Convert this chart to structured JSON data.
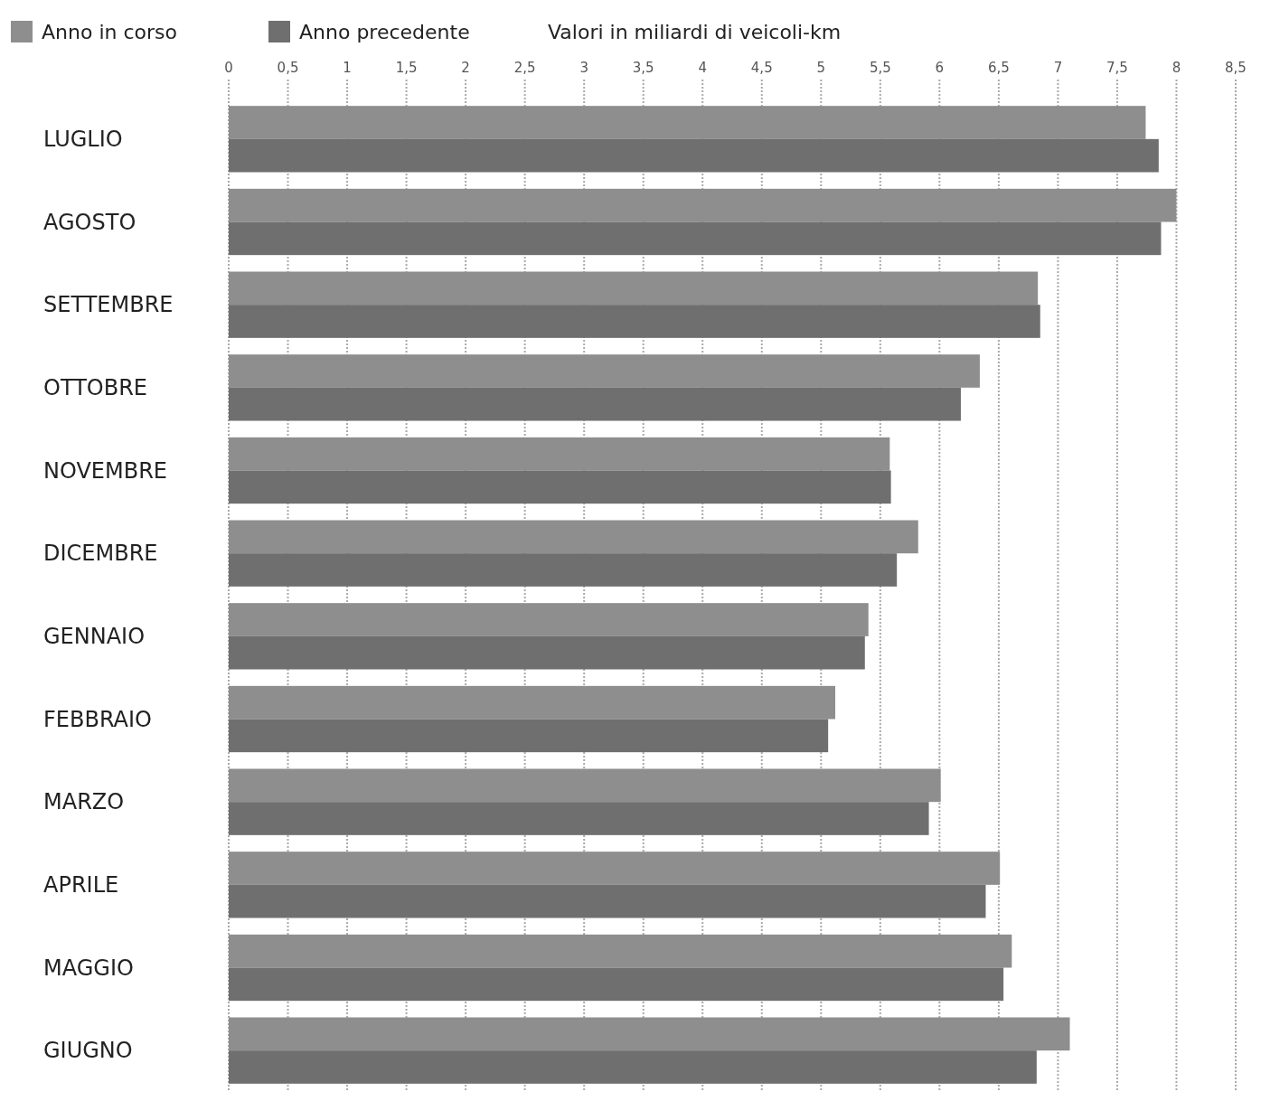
{
  "chart_data": {
    "type": "bar",
    "orientation": "horizontal",
    "subtitle": "Valori in miliardi di veicoli-km",
    "categories": [
      "LUGLIO",
      "AGOSTO",
      "SETTEMBRE",
      "OTTOBRE",
      "NOVEMBRE",
      "DICEMBRE",
      "GENNAIO",
      "FEBBRAIO",
      "MARZO",
      "APRILE",
      "MAGGIO",
      "GIUGNO"
    ],
    "series": [
      {
        "name": "Anno in corso",
        "color": "#8e8e8e",
        "values": [
          7.74,
          8.0,
          6.83,
          6.34,
          5.58,
          5.82,
          5.4,
          5.12,
          6.01,
          6.51,
          6.61,
          7.1
        ]
      },
      {
        "name": "Anno precedente",
        "color": "#6f6f6f",
        "values": [
          7.85,
          7.87,
          6.85,
          6.18,
          5.59,
          5.64,
          5.37,
          5.06,
          5.91,
          6.39,
          6.54,
          6.82
        ]
      }
    ],
    "xlim": [
      0,
      8.5
    ],
    "xticks": [
      0,
      {
        "value": 0.5,
        "label": "0,5"
      },
      1,
      {
        "value": 1.5,
        "label": "1,5"
      },
      2,
      {
        "value": 2.5,
        "label": "2,5"
      },
      3,
      {
        "value": 3.5,
        "label": "3,5"
      },
      4,
      {
        "value": 4.5,
        "label": "4,5"
      },
      5,
      {
        "value": 5.5,
        "label": "5,5"
      },
      6,
      {
        "value": 6.5,
        "label": "6,5"
      },
      7,
      {
        "value": 7.5,
        "label": "7,5"
      },
      8,
      {
        "value": 8.5,
        "label": "8,5"
      }
    ],
    "grid": "x",
    "legend": "top left"
  }
}
